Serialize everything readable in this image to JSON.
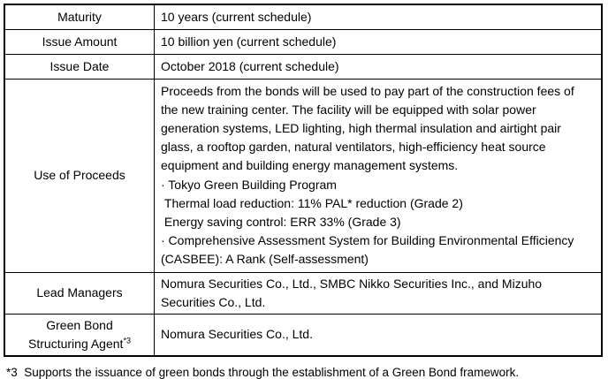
{
  "page": {
    "background": "#ffffff",
    "border_color": "#000000",
    "text_color": "#000000"
  },
  "table": {
    "rows": [
      {
        "label": "Maturity",
        "value": "10 years (current schedule)"
      },
      {
        "label": "Issue Amount",
        "value": "10 billion yen (current schedule)"
      },
      {
        "label": "Issue Date",
        "value": "October 2018 (current schedule)"
      },
      {
        "label": "Use of Proceeds",
        "value_lines": [
          "Proceeds from the bonds will be used to pay part of the construction fees of",
          "the new training center. The facility will be equipped with solar power",
          "generation systems, LED lighting, high thermal insulation and airtight pair",
          "glass, a rooftop garden, natural ventilators, high-efficiency heat source",
          "equipment and building energy management systems.",
          "· Tokyo Green Building Program",
          " Thermal load reduction: 11% PAL* reduction (Grade 2)",
          " Energy saving control: ERR 33% (Grade 3)",
          "· Comprehensive Assessment System for Building Environmental Efficiency",
          "(CASBEE): A Rank (Self-assessment)"
        ]
      },
      {
        "label": "Lead Managers",
        "value": "Nomura Securities Co., Ltd., SMBC Nikko Securities Inc., and Mizuho Securities Co., Ltd."
      },
      {
        "label_line1": "Green Bond",
        "label_line2": "Structuring Agent",
        "label_sup": "*3",
        "value": "Nomura Securities Co., Ltd."
      }
    ]
  },
  "footnote": "*3  Supports the issuance of green bonds through the establishment of a Green Bond framework."
}
